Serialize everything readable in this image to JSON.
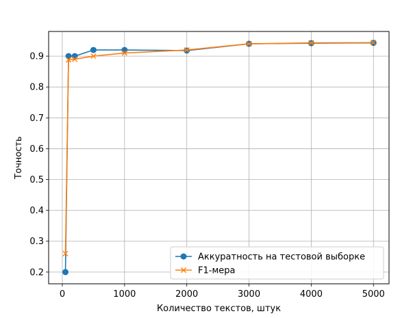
{
  "chart_data": {
    "type": "line",
    "title": "",
    "xlabel": "Количество текстов, штук",
    "ylabel": "Точность",
    "xlim": [
      -220,
      5250
    ],
    "ylim": [
      0.162,
      0.98
    ],
    "xticks": [
      0,
      1000,
      2000,
      3000,
      4000,
      5000
    ],
    "yticks": [
      0.2,
      0.3,
      0.4,
      0.5,
      0.6,
      0.7,
      0.8,
      0.9
    ],
    "grid": true,
    "legend_position": "lower-right",
    "x": [
      50,
      100,
      200,
      500,
      1000,
      2000,
      3000,
      4000,
      5000
    ],
    "series": [
      {
        "name": "Аккуратность на тестовой выборке",
        "color": "#1f77b4",
        "marker": "circle",
        "values": [
          0.2,
          0.9,
          0.9,
          0.92,
          0.92,
          0.918,
          0.94,
          0.942,
          0.943
        ]
      },
      {
        "name": "F1-мера",
        "color": "#ff7f0e",
        "marker": "x",
        "values": [
          0.26,
          0.888,
          0.89,
          0.9,
          0.91,
          0.92,
          0.94,
          0.943,
          0.944
        ]
      }
    ]
  }
}
